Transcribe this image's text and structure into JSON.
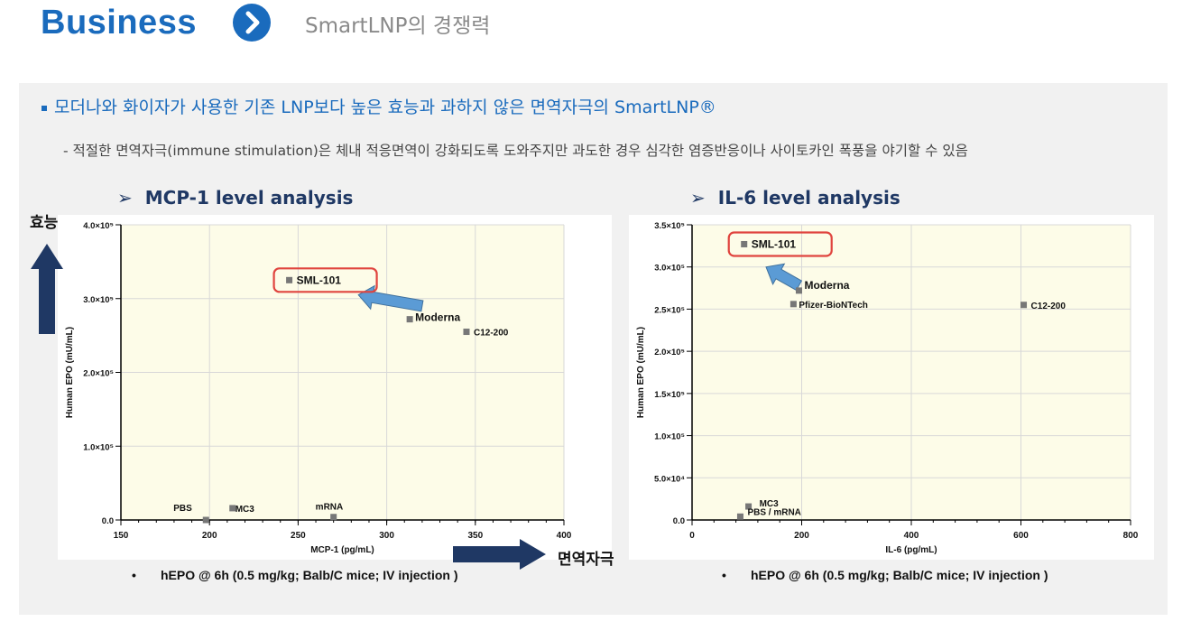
{
  "header": {
    "title": "Business",
    "subtitle": "SmartLNP의 경쟁력"
  },
  "bullets": {
    "main": "모더나와 화이자가 사용한 기존 LNP보다 높은 효능과 과하지 않은 면역자극의 SmartLNP®",
    "sub": "- 적절한 면역자극(immune stimulation)은 체내 적응면역이 강화되도록 도와주지만 과도한 경우 심각한 염증반응이나 사이토카인 폭풍을 야기할 수 있음"
  },
  "side_labels": {
    "efficacy": "효능",
    "immune": "면역자극"
  },
  "chart_data": [
    {
      "type": "scatter",
      "heading": "MCP-1 level analysis",
      "xlabel": "MCP-1 (pg/mL)",
      "ylabel": "Human EPO (mU/mL)",
      "xlim": [
        150,
        400
      ],
      "ylim": [
        0,
        400000
      ],
      "xticks": [
        150,
        200,
        250,
        300,
        350,
        400
      ],
      "xtick_labels": [
        "150",
        "200",
        "250",
        "300",
        "350",
        "400"
      ],
      "yticks": [
        0,
        100000,
        200000,
        300000,
        400000
      ],
      "ytick_labels": [
        "0.0",
        "1.0×10⁵",
        "2.0×10⁵",
        "3.0×10⁵",
        "4.0×10⁵"
      ],
      "grid": true,
      "background": "#fdfce8",
      "highlight": "SML-101",
      "arrow": {
        "from": [
          320,
          290000
        ],
        "to": [
          284,
          305000
        ]
      },
      "points": [
        {
          "label": "SML-101",
          "x": 245,
          "y": 325000
        },
        {
          "label": "Moderna",
          "x": 313,
          "y": 272000
        },
        {
          "label": "C12-200",
          "x": 345,
          "y": 255000
        },
        {
          "label": "PBS",
          "x": 198,
          "y": 0
        },
        {
          "label": "MC3",
          "x": 213,
          "y": 16000
        },
        {
          "label": "mRNA",
          "x": 270,
          "y": 4000
        }
      ],
      "footnote": "hEPO @ 6h (0.5 mg/kg; Balb/C mice; IV injection )"
    },
    {
      "type": "scatter",
      "heading": "IL-6 level analysis",
      "xlabel": "IL-6 (pg/mL)",
      "ylabel": "Human EPO (mU/mL)",
      "xlim": [
        0,
        800
      ],
      "ylim": [
        0,
        350000
      ],
      "xticks": [
        0,
        200,
        400,
        600,
        800
      ],
      "xtick_labels": [
        "0",
        "200",
        "400",
        "600",
        "800"
      ],
      "yticks": [
        0,
        50000,
        100000,
        150000,
        200000,
        250000,
        300000,
        350000
      ],
      "ytick_labels": [
        "0.0",
        "5.0×10⁴",
        "1.0×10⁵",
        "1.5×10⁵",
        "2.0×10⁵",
        "2.5×10⁵",
        "3.0×10⁵",
        "3.5×10⁵"
      ],
      "grid": true,
      "background": "#fdfce8",
      "highlight": "SML-101",
      "arrow": {
        "from": [
          195,
          278000
        ],
        "to": [
          135,
          300000
        ]
      },
      "points": [
        {
          "label": "SML-101",
          "x": 95,
          "y": 327000
        },
        {
          "label": "Moderna",
          "x": 195,
          "y": 272000
        },
        {
          "label": "Pfizer-BioNTech",
          "x": 185,
          "y": 256000
        },
        {
          "label": "C12-200",
          "x": 605,
          "y": 255000
        },
        {
          "label": "MC3",
          "x": 103,
          "y": 16000
        },
        {
          "label": "PBS / mRNA",
          "x": 88,
          "y": 4000
        }
      ],
      "footnote": "hEPO @ 6h (0.5 mg/kg; Balb/C mice; IV injection )"
    }
  ]
}
